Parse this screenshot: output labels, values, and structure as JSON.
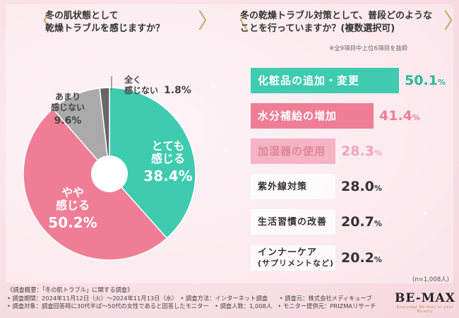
{
  "left_question": {
    "line1": "冬の肌状態として",
    "line2": "乾燥トラブルを感じますか？"
  },
  "right_question": {
    "line1": "冬の乾燥トラブル対策として、普段どのような",
    "line2": "ことを行っていますか？(複数選択可)"
  },
  "note": "※全9項目中上位6項目を抜粋",
  "sample_size": "(n=1,008人)",
  "chart_data": [
    {
      "type": "pie",
      "title": "冬の肌状態として乾燥トラブルを感じますか？",
      "slices": [
        {
          "label": "とても感じる",
          "line1": "とても",
          "line2": "感じる",
          "value": 38.4,
          "display": "38.4%",
          "color": "#3ecbb0"
        },
        {
          "label": "やや感じる",
          "line1": "やや",
          "line2": "感じる",
          "value": 50.2,
          "display": "50.2%",
          "color": "#f07d96"
        },
        {
          "label": "あまり感じない",
          "line1": "あまり",
          "line2": "感じない",
          "value": 9.6,
          "display": "9.6%",
          "color": "#aaaaaa"
        },
        {
          "label": "全く感じない",
          "line1": "全く",
          "line2": "感じない",
          "value": 1.8,
          "display": "1.8%",
          "color": "#666666"
        }
      ]
    },
    {
      "type": "bar",
      "title": "冬の乾燥トラブル対策として、普段どのようなことを行っていますか？(複数選択可)",
      "categories": [
        "化粧品の追加・変更",
        "水分補給の増加",
        "加湿器の使用",
        "紫外線対策",
        "生活習慣の改善",
        "インナーケア(サプリメントなど)"
      ],
      "cat_line1": [
        "化粧品の追加・変更",
        "水分補給の増加",
        "加湿器の使用",
        "紫外線対策",
        "生活習慣の改善",
        "インナーケア"
      ],
      "cat_line2": [
        "",
        "",
        "",
        "",
        "",
        "(サプリメントなど)"
      ],
      "values": [
        50.1,
        41.4,
        28.3,
        28.0,
        20.7,
        20.2
      ],
      "value_main": [
        "50.1",
        "41.4",
        "28.3",
        "28.0",
        "20.7",
        "20.2"
      ],
      "unit": "%",
      "bar_colors": [
        "#3ecbb0",
        "#f07d96",
        "#f5b3c4",
        "#f5f5f5",
        "#f5f5f5",
        "#f5f5f5"
      ],
      "text_colors": [
        "#ffffff",
        "#ffffff",
        "#e0849c",
        "#333333",
        "#333333",
        "#333333"
      ],
      "value_colors": [
        "#2bb89c",
        "#f07d96",
        "#f2a3b7",
        "#333333",
        "#333333",
        "#333333"
      ]
    }
  ],
  "footer": {
    "line1": "《調査概要：「冬の肌トラブル」に関する調査》",
    "line2": "• 調査期間：2024年11月12日（火）～2024年11月13日（水）　• 調査方法：インターネット調査　　• 調査元：株式会社メディキューブ",
    "line3": "• 調査対象：調査回答時に30代半ば～50代の女性であると回答したモニター　• 調査人数：1,008人　• モニター提供元：PRIZMAリサーチ"
  },
  "logo": {
    "name": "BE-MAX",
    "tagline": "Everyday Be-max in your Beauty"
  }
}
